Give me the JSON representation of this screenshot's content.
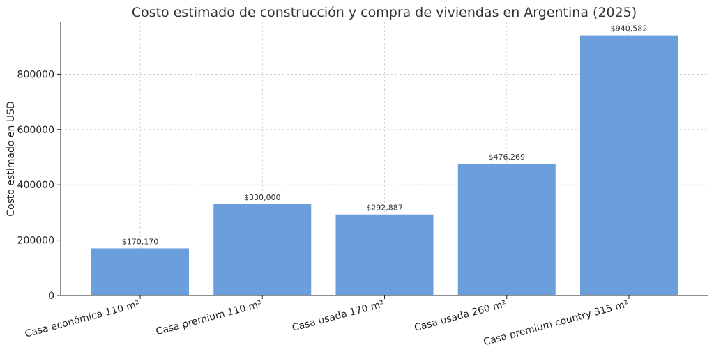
{
  "chart_data": {
    "type": "bar",
    "title": "Costo estimado de construcción y compra de viviendas en Argentina (2025)",
    "xlabel": "",
    "ylabel": "Costo estimado en USD",
    "categories": [
      "Casa económica 110 m²",
      "Casa premium 110 m²",
      "Casa usada 170 m²",
      "Casa usada 260 m²",
      "Casa premium country 315 m²"
    ],
    "values": [
      170170,
      330000,
      292887,
      476269,
      940582
    ],
    "data_labels": [
      "$170,170",
      "$330,000",
      "$292,887",
      "$476,269",
      "$940,582"
    ],
    "ylim": [
      0,
      990000
    ],
    "yticks": [
      0,
      200000,
      400000,
      600000,
      800000
    ],
    "ytick_labels": [
      "0",
      "200000",
      "400000",
      "600000",
      "800000"
    ],
    "grid": true,
    "bar_color": "#6a9fdc"
  }
}
